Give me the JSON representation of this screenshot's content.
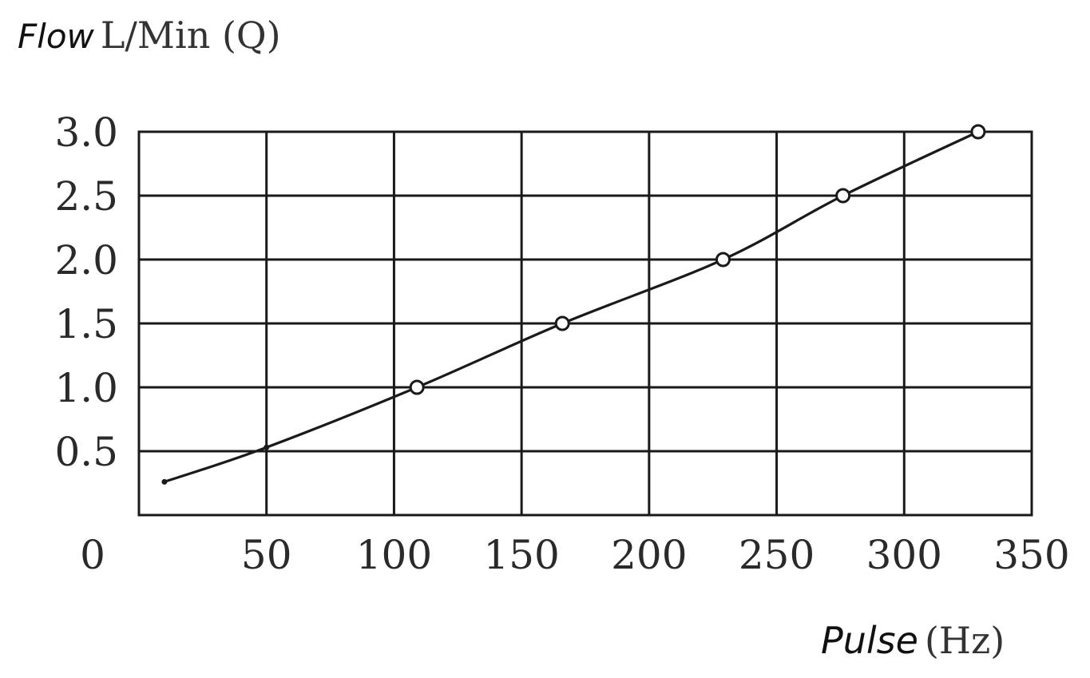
{
  "chart_data": {
    "type": "line",
    "ylabel_word": "Flow",
    "ylabel_unit": "L/Min (Q)",
    "xlabel_word": "Pulse",
    "xlabel_unit": "(Hz)",
    "x_origin_label": "0",
    "xlim": [
      0,
      350
    ],
    "ylim": [
      0,
      3.0
    ],
    "x_ticks": [
      {
        "value": 50,
        "label": "50"
      },
      {
        "value": 100,
        "label": "100"
      },
      {
        "value": 150,
        "label": "150"
      },
      {
        "value": 200,
        "label": "200"
      },
      {
        "value": 250,
        "label": "250"
      },
      {
        "value": 300,
        "label": "300"
      },
      {
        "value": 350,
        "label": "350"
      }
    ],
    "y_ticks": [
      {
        "value": 0.5,
        "label": "0.5"
      },
      {
        "value": 1.0,
        "label": "1.0"
      },
      {
        "value": 1.5,
        "label": "1.5"
      },
      {
        "value": 2.0,
        "label": "2.0"
      },
      {
        "value": 2.5,
        "label": "2.5"
      },
      {
        "value": 3.0,
        "label": "3.0"
      }
    ],
    "grid": true,
    "line_points": [
      {
        "x": 10,
        "y": 0.26
      },
      {
        "x": 50,
        "y": 0.53
      },
      {
        "x": 109,
        "y": 1.0
      },
      {
        "x": 166,
        "y": 1.5
      },
      {
        "x": 229,
        "y": 2.0
      },
      {
        "x": 276,
        "y": 2.5
      },
      {
        "x": 329,
        "y": 3.0
      }
    ],
    "markers": [
      {
        "x": 109,
        "y": 1.0
      },
      {
        "x": 166,
        "y": 1.5
      },
      {
        "x": 229,
        "y": 2.0
      },
      {
        "x": 276,
        "y": 2.5
      },
      {
        "x": 329,
        "y": 3.0
      }
    ],
    "line_color": "#1a1a1a"
  }
}
